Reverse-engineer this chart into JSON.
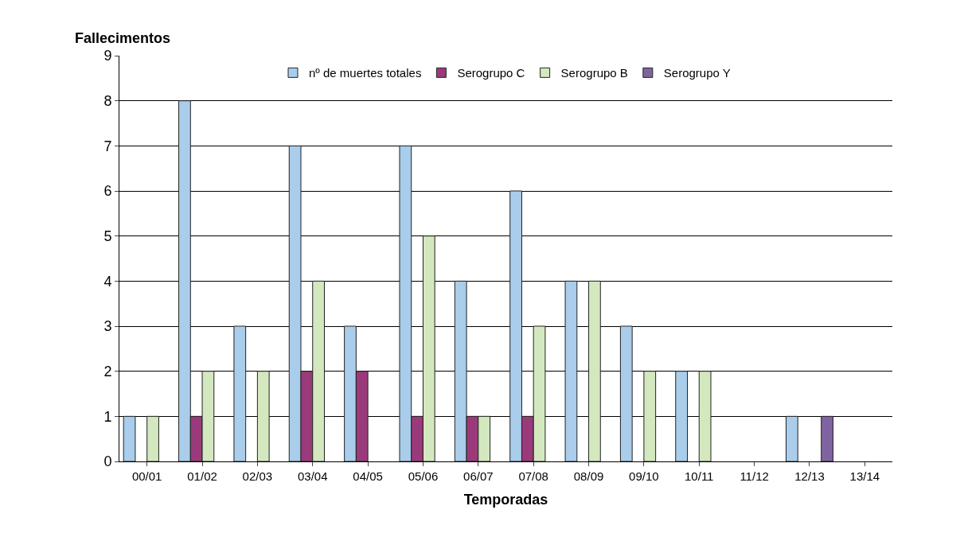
{
  "chart_data": {
    "type": "bar",
    "ylabel": "Fallecimentos",
    "xlabel": "Temporadas",
    "categories": [
      "00/01",
      "01/02",
      "02/03",
      "03/04",
      "04/05",
      "05/06",
      "06/07",
      "07/08",
      "08/09",
      "09/10",
      "10/11",
      "11/12",
      "12/13",
      "13/14"
    ],
    "series": [
      {
        "name": "nº de muertes totales",
        "color": "#a9cdea",
        "values": [
          1,
          8,
          3,
          7,
          3,
          7,
          4,
          6,
          4,
          3,
          2,
          null,
          1,
          null
        ]
      },
      {
        "name": "Serogrupo C",
        "color": "#9b3a7a",
        "values": [
          null,
          1,
          null,
          2,
          2,
          1,
          1,
          1,
          null,
          null,
          null,
          null,
          null,
          null
        ]
      },
      {
        "name": "Serogrupo B",
        "color": "#d3e8bf",
        "values": [
          1,
          2,
          2,
          4,
          null,
          5,
          1,
          3,
          4,
          2,
          2,
          null,
          null,
          null
        ]
      },
      {
        "name": "Serogrupo Y",
        "color": "#8064a2",
        "values": [
          null,
          null,
          null,
          null,
          null,
          null,
          null,
          null,
          null,
          null,
          null,
          null,
          1,
          null
        ]
      }
    ],
    "ylim": [
      0,
      9
    ],
    "yticks": [
      0,
      1,
      2,
      3,
      4,
      5,
      6,
      7,
      8,
      9
    ],
    "grid": "y",
    "legend": "top"
  }
}
